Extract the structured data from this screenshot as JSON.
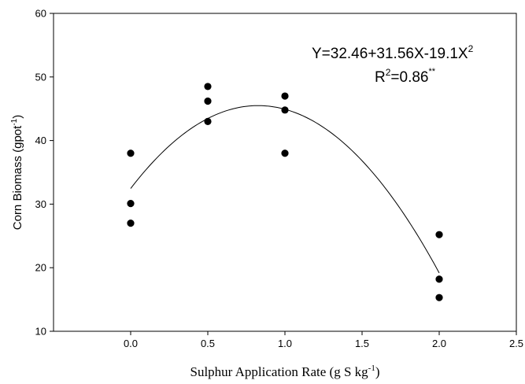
{
  "chart_data": {
    "type": "scatter",
    "xlabel": {
      "main": "Sulphur Application Rate (g S kg",
      "sup": "-1",
      "tail": ")"
    },
    "ylabel": {
      "main": "Corn Biomass (gpot",
      "sup": "-1",
      "tail": ")"
    },
    "xlim": [
      -0.5,
      2.5
    ],
    "ylim": [
      10,
      60
    ],
    "x_ticks": [
      "0.0",
      "0.5",
      "1.0",
      "1.5",
      "2.0",
      "2.5"
    ],
    "y_ticks": [
      "10",
      "20",
      "30",
      "40",
      "50",
      "60"
    ],
    "grid": false,
    "points": [
      {
        "x": 0.0,
        "y": 38.0
      },
      {
        "x": 0.0,
        "y": 30.1
      },
      {
        "x": 0.0,
        "y": 27.0
      },
      {
        "x": 0.5,
        "y": 48.5
      },
      {
        "x": 0.5,
        "y": 46.2
      },
      {
        "x": 0.5,
        "y": 43.0
      },
      {
        "x": 1.0,
        "y": 47.0
      },
      {
        "x": 1.0,
        "y": 44.8
      },
      {
        "x": 1.0,
        "y": 38.0
      },
      {
        "x": 2.0,
        "y": 25.2
      },
      {
        "x": 2.0,
        "y": 18.2
      },
      {
        "x": 2.0,
        "y": 15.3
      }
    ],
    "fit": {
      "type": "quadratic",
      "intercept": 32.46,
      "linear": 31.56,
      "quadratic": -19.1,
      "x_range": [
        0.0,
        2.0
      ]
    },
    "annotation": {
      "equation_main": "Y=32.46+31.56X-19.1X",
      "equation_sup": "2",
      "r2_prefix": "R",
      "r2_sup": "2",
      "r2_value": "=0.86",
      "r2_sig": "**"
    }
  }
}
